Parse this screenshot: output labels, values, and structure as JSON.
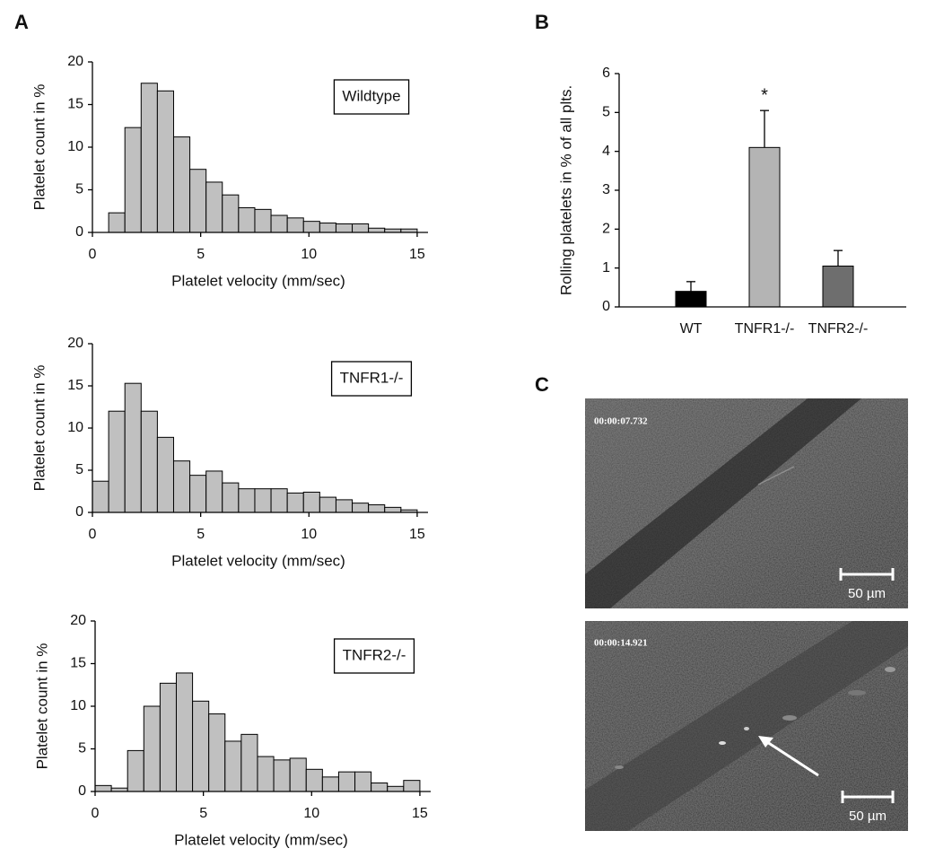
{
  "panels": {
    "a": "A",
    "b": "B",
    "c": "C"
  },
  "chart_data": [
    {
      "type": "histogram",
      "title": "Wildtype",
      "x_label": "Platelet velocity (mm/sec)",
      "y_label": "Platelet count in %",
      "bins": [
        0.75,
        1.5,
        2.25,
        3,
        3.75,
        4.5,
        5.25,
        6,
        6.75,
        7.5,
        8.25,
        9,
        9.75,
        10.5,
        11.25,
        12,
        12.75,
        13.5,
        14.25,
        15
      ],
      "values": [
        2.3,
        12.3,
        17.5,
        16.6,
        11.2,
        7.4,
        5.9,
        4.4,
        2.9,
        2.7,
        2.0,
        1.7,
        1.3,
        1.1,
        1.0,
        1.0,
        0.5,
        0.4,
        0.4
      ],
      "color": "#c0c0c0",
      "xlim": [
        0,
        15.5
      ],
      "xticks": [
        0,
        5,
        10,
        15
      ],
      "ylim": [
        0,
        20
      ],
      "yticks": [
        0,
        5,
        10,
        15,
        20
      ]
    },
    {
      "type": "histogram",
      "title": "TNFR1-/-",
      "x_label": "Platelet velocity (mm/sec)",
      "y_label": "Platelet count in %",
      "bins": [
        0,
        0.75,
        1.5,
        2.25,
        3,
        3.75,
        4.5,
        5.25,
        6,
        6.75,
        7.5,
        8.25,
        9,
        9.75,
        10.5,
        11.25,
        12,
        12.75,
        13.5,
        14.25,
        15
      ],
      "values": [
        3.7,
        12.0,
        15.3,
        12.0,
        8.9,
        6.1,
        4.4,
        4.9,
        3.5,
        2.8,
        2.8,
        2.8,
        2.3,
        2.4,
        1.8,
        1.5,
        1.1,
        0.9,
        0.6,
        0.3
      ],
      "color": "#c0c0c0",
      "xlim": [
        0,
        15.5
      ],
      "xticks": [
        0,
        5,
        10,
        15
      ],
      "ylim": [
        0,
        20
      ],
      "yticks": [
        0,
        5,
        10,
        15,
        20
      ]
    },
    {
      "type": "histogram",
      "title": "TNFR2-/-",
      "x_label": "Platelet velocity (mm/sec)",
      "y_label": "Platelet count in %",
      "bins": [
        0,
        0.75,
        1.5,
        2.25,
        3,
        3.75,
        4.5,
        5.25,
        6,
        6.75,
        7.5,
        8.25,
        9,
        9.75,
        10.5,
        11.25,
        12,
        12.75,
        13.5,
        14.25,
        15
      ],
      "values": [
        0.7,
        0.4,
        4.8,
        10.0,
        12.7,
        13.9,
        10.6,
        9.1,
        5.9,
        6.7,
        4.1,
        3.7,
        3.9,
        2.6,
        1.7,
        2.3,
        2.3,
        1.0,
        0.6,
        1.3
      ],
      "color": "#c0c0c0",
      "xlim": [
        0,
        15.5
      ],
      "xticks": [
        0,
        5,
        10,
        15
      ],
      "ylim": [
        0,
        20
      ],
      "yticks": [
        0,
        5,
        10,
        15,
        20
      ]
    },
    {
      "type": "bar",
      "y_label": "Rolling platelets in % of all plts.",
      "annotation": "*",
      "categories": [
        "WT",
        "TNFR1-/-",
        "TNFR2-/-"
      ],
      "values": [
        0.4,
        4.1,
        1.05
      ],
      "errors": [
        0.25,
        0.95,
        0.4
      ],
      "colors": [
        "#000000",
        "#b4b4b4",
        "#6e6e6e"
      ],
      "ylim": [
        0,
        6
      ],
      "yticks": [
        0,
        1,
        2,
        3,
        4,
        5,
        6
      ]
    }
  ],
  "images": [
    {
      "timestamp": "00:00:07.732",
      "scale_label": "50 µm"
    },
    {
      "timestamp": "00:00:14.921",
      "scale_label": "50 µm"
    }
  ]
}
